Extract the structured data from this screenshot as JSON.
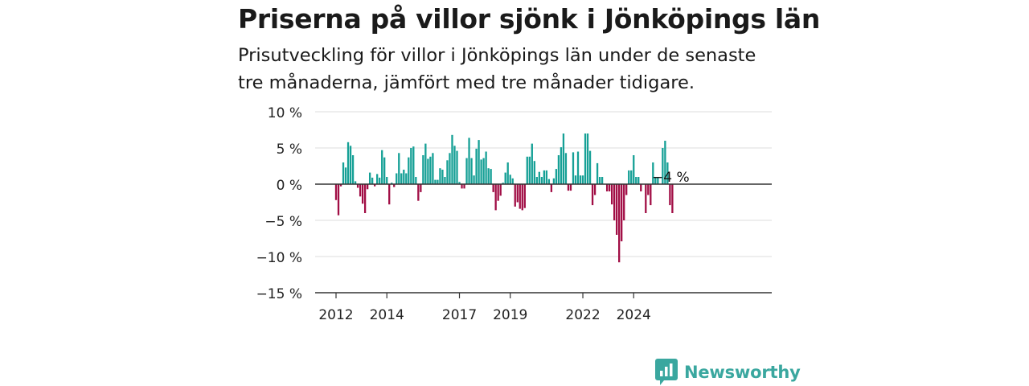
{
  "title": "Priserna på villor sjönk i Jönköpings län",
  "subtitle": [
    "Prisutveckling för villor i Jönköpings län under de senaste",
    "tre månaderna, jämfört med tre månader tidigare."
  ],
  "brand": {
    "name": "Newsworthy",
    "color": "#3aa79f"
  },
  "colors": {
    "positive": "#16a096",
    "negative": "#a10e45",
    "grid": "#dddddd",
    "axis": "#333333"
  },
  "chart_data": {
    "type": "bar",
    "xlabel": "",
    "ylabel": "",
    "ylim": [
      -15,
      10
    ],
    "yticks": [
      10,
      5,
      0,
      -5,
      -10,
      -15
    ],
    "ytick_labels": [
      "10 %",
      "5 %",
      "0 %",
      "−5 %",
      "−10 %",
      "−15 %"
    ],
    "xticks": [
      {
        "label": "2012",
        "index": 0
      },
      {
        "label": "2014",
        "index": 21
      },
      {
        "label": "2017",
        "index": 51
      },
      {
        "label": "2019",
        "index": 72
      },
      {
        "label": "2022",
        "index": 102
      },
      {
        "label": "2024",
        "index": 123
      }
    ],
    "grid": true,
    "start": "2012-01",
    "frequency": "monthly",
    "annotation": {
      "text": "−4 %",
      "index": 131
    },
    "values": [
      -2.2,
      -4.3,
      -0.3,
      3.0,
      2.3,
      5.8,
      5.3,
      4.0,
      0.4,
      -0.5,
      -1.7,
      -2.7,
      -4.0,
      -0.7,
      1.6,
      0.9,
      -0.3,
      1.4,
      0.9,
      4.7,
      3.7,
      1.0,
      -2.8,
      0.2,
      -0.4,
      1.5,
      4.3,
      1.5,
      2.0,
      1.5,
      3.7,
      5.0,
      5.2,
      1.0,
      -2.3,
      -1.1,
      4.0,
      5.6,
      3.5,
      3.8,
      4.3,
      0.6,
      0.6,
      2.2,
      2.0,
      1.0,
      3.3,
      4.3,
      6.8,
      5.3,
      4.6,
      0.3,
      -0.6,
      -0.6,
      3.6,
      6.4,
      3.6,
      1.2,
      4.9,
      6.1,
      3.4,
      3.6,
      4.5,
      2.2,
      2.1,
      -1.1,
      -3.6,
      -2.3,
      -1.6,
      0.2,
      1.6,
      3.0,
      1.3,
      0.8,
      -3.1,
      -2.5,
      -3.4,
      -3.6,
      -3.3,
      3.8,
      3.8,
      5.6,
      3.2,
      1.0,
      1.7,
      1.0,
      1.9,
      1.9,
      0.7,
      -1.1,
      0.8,
      2.1,
      4.0,
      5.1,
      7.0,
      4.3,
      -0.9,
      -0.9,
      4.4,
      1.2,
      4.5,
      1.2,
      1.2,
      7.0,
      7.0,
      4.6,
      -2.9,
      -1.5,
      2.9,
      1.0,
      1.0,
      0.0,
      -1.0,
      -1.0,
      -2.8,
      -5.0,
      -7.0,
      -10.8,
      -7.9,
      -5.0,
      -1.5,
      1.9,
      1.9,
      4.0,
      1.0,
      1.0,
      -1.0,
      0.0,
      -4.0,
      -1.5,
      -2.9,
      3.0,
      1.0,
      1.0,
      0.0,
      5.0,
      6.0,
      3.0,
      -2.9,
      -4.0
    ]
  }
}
